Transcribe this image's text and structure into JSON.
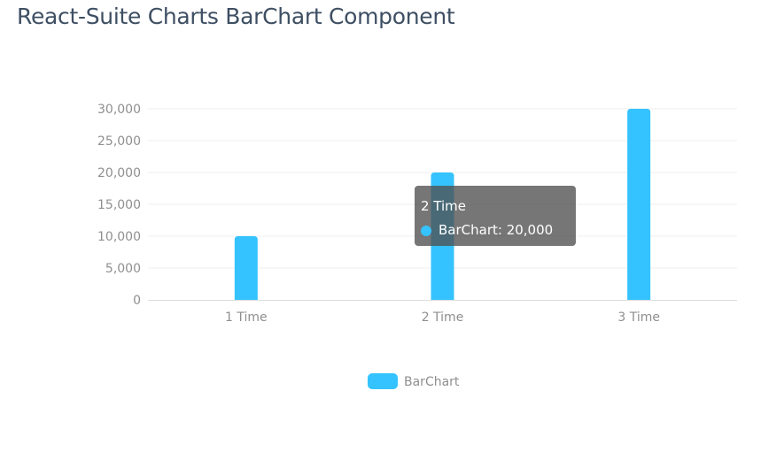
{
  "page": {
    "title": "React-Suite Charts BarChart Component"
  },
  "colors": {
    "bar": "#34c3ff",
    "title": "#3e4f63",
    "tick_text": "#8f8f8f",
    "grid": "#efefef"
  },
  "tooltip": {
    "title": "2 Time",
    "series_name": "BarChart",
    "value_text": "20,000",
    "separator": ": "
  },
  "chart_data": {
    "type": "bar",
    "categories": [
      "1 Time",
      "2 Time",
      "3 Time"
    ],
    "series": [
      {
        "name": "BarChart",
        "values": [
          10000,
          20000,
          30000
        ]
      }
    ],
    "ylim": [
      0,
      30000
    ],
    "yticks": [
      0,
      5000,
      10000,
      15000,
      20000,
      25000,
      30000
    ],
    "ytick_labels": [
      "0",
      "5,000",
      "10,000",
      "15,000",
      "20,000",
      "25,000",
      "30,000"
    ],
    "grid": true,
    "legend": "bottom-center"
  }
}
